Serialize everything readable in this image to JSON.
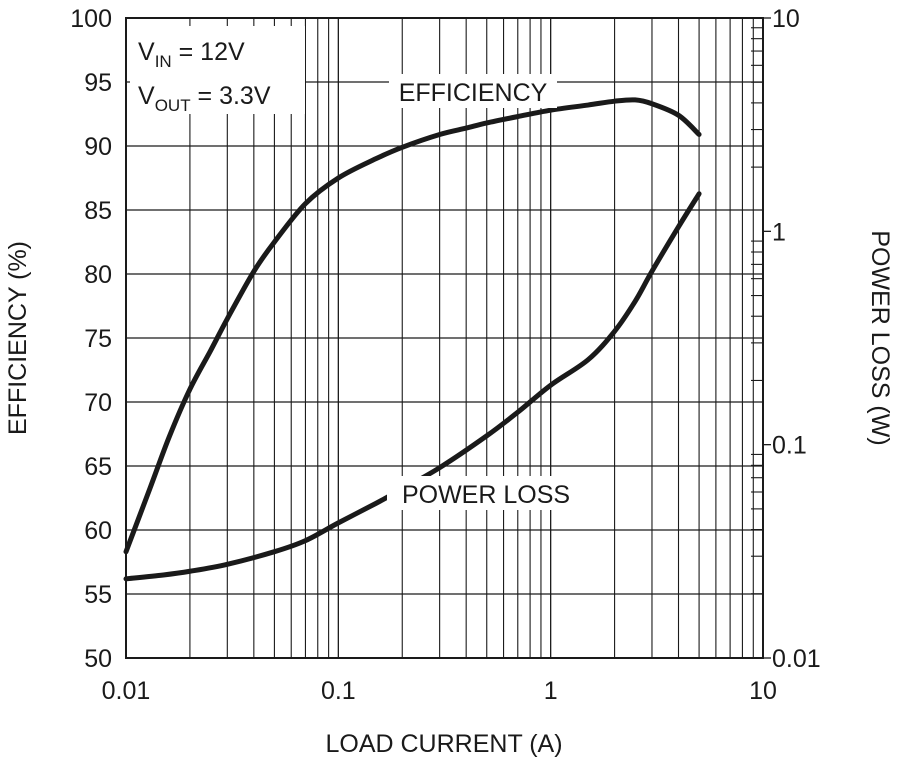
{
  "chart_data": {
    "type": "line",
    "x_scale": "log",
    "xlabel": "LOAD CURRENT (A)",
    "ylabel": "EFFICIENCY (%)",
    "y2label": "POWER LOSS (W)",
    "xlim": [
      0.01,
      10
    ],
    "ylim": [
      50,
      100
    ],
    "y2lim": [
      0.01,
      10
    ],
    "y2_scale": "log",
    "grid": true,
    "x_ticks": [
      {
        "value": 0.01,
        "label": "0.01"
      },
      {
        "value": 0.1,
        "label": "0.1"
      },
      {
        "value": 1,
        "label": "1"
      },
      {
        "value": 10,
        "label": "10"
      }
    ],
    "y_ticks": [
      {
        "value": 50,
        "label": "50"
      },
      {
        "value": 55,
        "label": "55"
      },
      {
        "value": 60,
        "label": "60"
      },
      {
        "value": 65,
        "label": "65"
      },
      {
        "value": 70,
        "label": "70"
      },
      {
        "value": 75,
        "label": "75"
      },
      {
        "value": 80,
        "label": "80"
      },
      {
        "value": 85,
        "label": "85"
      },
      {
        "value": 90,
        "label": "90"
      },
      {
        "value": 95,
        "label": "95"
      },
      {
        "value": 100,
        "label": "100"
      }
    ],
    "y2_ticks": [
      {
        "value": 0.01,
        "label": "0.01"
      },
      {
        "value": 0.1,
        "label": "0.1"
      },
      {
        "value": 1,
        "label": "1"
      },
      {
        "value": 10,
        "label": "10"
      }
    ],
    "annotations": {
      "vin": {
        "main": "V",
        "sub": "IN",
        "rest": " = 12V"
      },
      "vout": {
        "main": "V",
        "sub": "OUT",
        "rest": " = 3.3V"
      }
    },
    "series": [
      {
        "name": "EFFICIENCY",
        "axis": "left",
        "x": [
          0.01,
          0.013,
          0.016,
          0.02,
          0.025,
          0.03,
          0.04,
          0.05,
          0.07,
          0.1,
          0.15,
          0.2,
          0.3,
          0.4,
          0.5,
          0.7,
          1.0,
          1.5,
          2.0,
          2.5,
          3.0,
          4.0,
          5.0
        ],
        "y": [
          58.3,
          63.3,
          67.3,
          71.0,
          74.0,
          76.5,
          80.2,
          82.5,
          85.5,
          87.5,
          89.0,
          89.9,
          90.9,
          91.4,
          91.8,
          92.3,
          92.8,
          93.2,
          93.5,
          93.6,
          93.3,
          92.4,
          90.9
        ]
      },
      {
        "name": "POWER LOSS",
        "axis": "right",
        "x": [
          0.01,
          0.015,
          0.02,
          0.03,
          0.05,
          0.07,
          0.1,
          0.15,
          0.2,
          0.3,
          0.5,
          0.7,
          1.0,
          1.5,
          2.0,
          2.5,
          3.0,
          4.0,
          5.0
        ],
        "y": [
          0.0235,
          0.0245,
          0.0255,
          0.0275,
          0.0315,
          0.0355,
          0.043,
          0.053,
          0.062,
          0.078,
          0.11,
          0.142,
          0.19,
          0.25,
          0.34,
          0.47,
          0.65,
          1.05,
          1.5
        ]
      }
    ]
  }
}
